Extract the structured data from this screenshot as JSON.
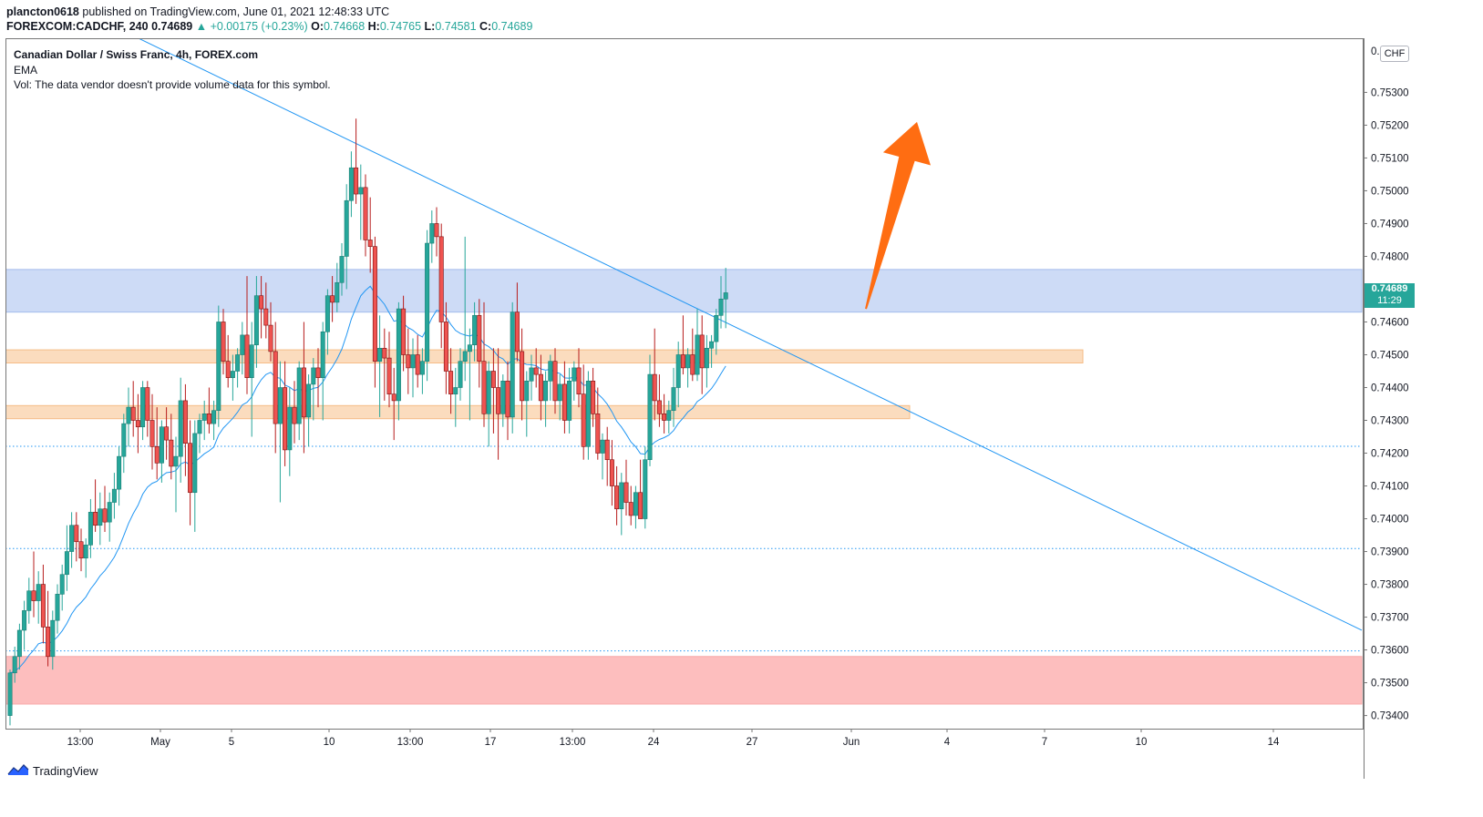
{
  "header": {
    "publisher": "plancton0618",
    "published_text": "published on TradingView.com, June 01, 2021 12:48:33 UTC",
    "symbol": "FOREXCOM:CADCHF, 240",
    "last": "0.74689",
    "change": "▲ +0.00175 (+0.23%)",
    "o_label": "O:",
    "o": "0.74668",
    "h_label": "H:",
    "h": "0.74765",
    "l_label": "L:",
    "l": "0.74581",
    "c_label": "C:",
    "c": "0.74689"
  },
  "legend": {
    "title": "Canadian Dollar / Swiss Franc, 4h, FOREX.com",
    "ema": "EMA",
    "vol": "Vol: The data vendor doesn't provide volume data for this symbol."
  },
  "currency_button": "CHF",
  "price_tag": {
    "price": "0.74689",
    "countdown": "11:29"
  },
  "brand": "TradingView",
  "colors": {
    "up": "#26a69a",
    "down": "#ef5350",
    "ema": "#2196f3",
    "trendline": "#2196f3",
    "blue_zone": "#c8d8f6",
    "orange_zone": "#fbd9b8",
    "red_zone": "#fdb8b8",
    "arrow": "#ff6d12"
  },
  "chart_data": {
    "type": "candlestick",
    "ylim": [
      0.7336,
      0.75465
    ],
    "y_ticks": [
      "0.73400",
      "0.73500",
      "0.73600",
      "0.73700",
      "0.73800",
      "0.73900",
      "0.74000",
      "0.74100",
      "0.74200",
      "0.74300",
      "0.74400",
      "0.74500",
      "0.74600",
      "0.74800",
      "0.74900",
      "0.75000",
      "0.75100",
      "0.75200",
      "0.75300"
    ],
    "x_ticks": [
      "13:00",
      "May",
      "5",
      "10",
      "13:00",
      "17",
      "13:00",
      "24",
      "27",
      "Jun",
      "4",
      "7",
      "10",
      "14"
    ],
    "zones": [
      {
        "kind": "resistance",
        "color": "blue",
        "low": 0.7463,
        "high": 0.7476
      },
      {
        "kind": "support",
        "color": "orange",
        "low": 0.74475,
        "high": 0.74515
      },
      {
        "kind": "support",
        "color": "orange",
        "low": 0.74305,
        "high": 0.74345
      },
      {
        "kind": "support",
        "color": "red",
        "low": 0.73435,
        "high": 0.7358
      }
    ],
    "horizontal_levels": [
      0.74221,
      0.73909,
      0.73597
    ],
    "trendline": [
      [
        0,
        0.7552
      ],
      [
        271,
        0.7366
      ]
    ],
    "arrow": {
      "from": [
        145,
        0.7464
      ],
      "to": [
        158,
        0.7521
      ]
    },
    "bars": [
      [
        0.734,
        0.7354,
        0.7337,
        0.7353
      ],
      [
        0.7353,
        0.7361,
        0.735,
        0.7358
      ],
      [
        0.7358,
        0.7368,
        0.7354,
        0.7366
      ],
      [
        0.7366,
        0.7375,
        0.736,
        0.7372
      ],
      [
        0.7372,
        0.7382,
        0.7368,
        0.7378
      ],
      [
        0.7378,
        0.739,
        0.737,
        0.7375
      ],
      [
        0.7375,
        0.7384,
        0.7368,
        0.738
      ],
      [
        0.738,
        0.7386,
        0.7362,
        0.7367
      ],
      [
        0.7367,
        0.7378,
        0.7355,
        0.7358
      ],
      [
        0.7358,
        0.7372,
        0.7354,
        0.7369
      ],
      [
        0.7369,
        0.738,
        0.7365,
        0.7377
      ],
      [
        0.7377,
        0.7386,
        0.7372,
        0.7383
      ],
      [
        0.7383,
        0.7398,
        0.7378,
        0.739
      ],
      [
        0.739,
        0.7402,
        0.7385,
        0.7398
      ],
      [
        0.7398,
        0.7402,
        0.7387,
        0.7393
      ],
      [
        0.7393,
        0.7397,
        0.7384,
        0.7388
      ],
      [
        0.7388,
        0.7394,
        0.7382,
        0.7392
      ],
      [
        0.7392,
        0.7406,
        0.7388,
        0.7402
      ],
      [
        0.7402,
        0.7412,
        0.7396,
        0.7398
      ],
      [
        0.7398,
        0.7408,
        0.7392,
        0.7403
      ],
      [
        0.7403,
        0.741,
        0.7396,
        0.7399
      ],
      [
        0.7399,
        0.7408,
        0.7393,
        0.7405
      ],
      [
        0.7405,
        0.7414,
        0.74,
        0.7409
      ],
      [
        0.7409,
        0.7422,
        0.7404,
        0.7419
      ],
      [
        0.7419,
        0.7432,
        0.7414,
        0.7429
      ],
      [
        0.7429,
        0.744,
        0.7422,
        0.7434
      ],
      [
        0.7434,
        0.7442,
        0.7425,
        0.743
      ],
      [
        0.743,
        0.7438,
        0.742,
        0.7428
      ],
      [
        0.7428,
        0.7442,
        0.7424,
        0.744
      ],
      [
        0.744,
        0.7442,
        0.7425,
        0.743
      ],
      [
        0.743,
        0.7438,
        0.7415,
        0.7422
      ],
      [
        0.7422,
        0.7434,
        0.7412,
        0.7417
      ],
      [
        0.7417,
        0.743,
        0.7411,
        0.7428
      ],
      [
        0.7428,
        0.7434,
        0.7418,
        0.7424
      ],
      [
        0.7424,
        0.7432,
        0.7412,
        0.7416
      ],
      [
        0.7416,
        0.7425,
        0.7402,
        0.7419
      ],
      [
        0.7419,
        0.7443,
        0.7411,
        0.7436
      ],
      [
        0.7436,
        0.7441,
        0.7413,
        0.7423
      ],
      [
        0.7423,
        0.743,
        0.7398,
        0.7408
      ],
      [
        0.7408,
        0.743,
        0.7396,
        0.7426
      ],
      [
        0.7426,
        0.7432,
        0.742,
        0.743
      ],
      [
        0.743,
        0.7436,
        0.7424,
        0.7432
      ],
      [
        0.7432,
        0.744,
        0.7426,
        0.7429
      ],
      [
        0.7429,
        0.7436,
        0.7424,
        0.7433
      ],
      [
        0.7433,
        0.7465,
        0.7428,
        0.746
      ],
      [
        0.746,
        0.7464,
        0.7444,
        0.7448
      ],
      [
        0.7448,
        0.7456,
        0.744,
        0.7443
      ],
      [
        0.7443,
        0.745,
        0.7436,
        0.7445
      ],
      [
        0.7445,
        0.7452,
        0.744,
        0.745
      ],
      [
        0.745,
        0.746,
        0.7444,
        0.7456
      ],
      [
        0.7456,
        0.7474,
        0.7438,
        0.7443
      ],
      [
        0.7443,
        0.746,
        0.7425,
        0.7453
      ],
      [
        0.7453,
        0.7474,
        0.7446,
        0.7468
      ],
      [
        0.7468,
        0.7474,
        0.7455,
        0.7464
      ],
      [
        0.7464,
        0.7472,
        0.7455,
        0.7459
      ],
      [
        0.7459,
        0.7466,
        0.7448,
        0.7451
      ],
      [
        0.7451,
        0.746,
        0.742,
        0.7429
      ],
      [
        0.7429,
        0.7448,
        0.7405,
        0.744
      ],
      [
        0.744,
        0.7448,
        0.7416,
        0.7421
      ],
      [
        0.7421,
        0.744,
        0.7413,
        0.7434
      ],
      [
        0.7434,
        0.7442,
        0.7423,
        0.7429
      ],
      [
        0.7429,
        0.7448,
        0.7424,
        0.7446
      ],
      [
        0.7446,
        0.746,
        0.742,
        0.7431
      ],
      [
        0.7431,
        0.7444,
        0.7422,
        0.7441
      ],
      [
        0.7441,
        0.7449,
        0.743,
        0.7446
      ],
      [
        0.7446,
        0.7452,
        0.7434,
        0.7443
      ],
      [
        0.7443,
        0.746,
        0.743,
        0.7457
      ],
      [
        0.7457,
        0.747,
        0.745,
        0.7468
      ],
      [
        0.7468,
        0.7474,
        0.746,
        0.7466
      ],
      [
        0.7466,
        0.7478,
        0.7463,
        0.7472
      ],
      [
        0.7472,
        0.7484,
        0.7468,
        0.748
      ],
      [
        0.748,
        0.7502,
        0.747,
        0.7497
      ],
      [
        0.7497,
        0.7512,
        0.7492,
        0.7507
      ],
      [
        0.7507,
        0.7522,
        0.7496,
        0.7499
      ],
      [
        0.7499,
        0.7508,
        0.7485,
        0.7501
      ],
      [
        0.7501,
        0.7505,
        0.748,
        0.7485
      ],
      [
        0.7485,
        0.7498,
        0.7475,
        0.7483
      ],
      [
        0.7483,
        0.7486,
        0.744,
        0.7448
      ],
      [
        0.7448,
        0.7462,
        0.7431,
        0.7452
      ],
      [
        0.7452,
        0.7458,
        0.7436,
        0.7449
      ],
      [
        0.7449,
        0.7457,
        0.7434,
        0.7438
      ],
      [
        0.7438,
        0.7446,
        0.7424,
        0.7436
      ],
      [
        0.7436,
        0.7466,
        0.743,
        0.7464
      ],
      [
        0.7464,
        0.7468,
        0.7445,
        0.745
      ],
      [
        0.745,
        0.7458,
        0.7438,
        0.7446
      ],
      [
        0.7446,
        0.7455,
        0.7437,
        0.745
      ],
      [
        0.745,
        0.7456,
        0.744,
        0.7444
      ],
      [
        0.7444,
        0.7452,
        0.7438,
        0.7448
      ],
      [
        0.7448,
        0.7488,
        0.7442,
        0.7484
      ],
      [
        0.7484,
        0.7494,
        0.7478,
        0.749
      ],
      [
        0.749,
        0.7495,
        0.748,
        0.7486
      ],
      [
        0.7486,
        0.749,
        0.7452,
        0.746
      ],
      [
        0.746,
        0.7466,
        0.7438,
        0.7445
      ],
      [
        0.7445,
        0.7452,
        0.7432,
        0.7438
      ],
      [
        0.7438,
        0.7446,
        0.7428,
        0.744
      ],
      [
        0.744,
        0.7452,
        0.7436,
        0.7448
      ],
      [
        0.7448,
        0.7486,
        0.7442,
        0.7451
      ],
      [
        0.7451,
        0.7458,
        0.743,
        0.7453
      ],
      [
        0.7453,
        0.7466,
        0.7448,
        0.7462
      ],
      [
        0.7462,
        0.7467,
        0.744,
        0.7448
      ],
      [
        0.7448,
        0.7466,
        0.7428,
        0.7432
      ],
      [
        0.7432,
        0.7448,
        0.7422,
        0.7445
      ],
      [
        0.7445,
        0.7452,
        0.7426,
        0.744
      ],
      [
        0.744,
        0.7452,
        0.7418,
        0.7432
      ],
      [
        0.7432,
        0.7444,
        0.7428,
        0.7442
      ],
      [
        0.7442,
        0.7448,
        0.7424,
        0.7431
      ],
      [
        0.7431,
        0.7466,
        0.7426,
        0.7463
      ],
      [
        0.7463,
        0.7472,
        0.7448,
        0.7451
      ],
      [
        0.7451,
        0.7458,
        0.743,
        0.7436
      ],
      [
        0.7436,
        0.7445,
        0.7425,
        0.7442
      ],
      [
        0.7442,
        0.745,
        0.7436,
        0.7446
      ],
      [
        0.7446,
        0.7452,
        0.744,
        0.7444
      ],
      [
        0.7444,
        0.745,
        0.743,
        0.7436
      ],
      [
        0.7436,
        0.7445,
        0.7428,
        0.7442
      ],
      [
        0.7442,
        0.745,
        0.7436,
        0.7448
      ],
      [
        0.7448,
        0.7452,
        0.7432,
        0.7436
      ],
      [
        0.7436,
        0.7444,
        0.743,
        0.7441
      ],
      [
        0.7441,
        0.7448,
        0.7426,
        0.743
      ],
      [
        0.743,
        0.7446,
        0.7426,
        0.7442
      ],
      [
        0.7442,
        0.7448,
        0.7436,
        0.7446
      ],
      [
        0.7446,
        0.7452,
        0.7434,
        0.7438
      ],
      [
        0.7438,
        0.7447,
        0.7418,
        0.7422
      ],
      [
        0.7422,
        0.7445,
        0.7418,
        0.7442
      ],
      [
        0.7442,
        0.7446,
        0.7428,
        0.7432
      ],
      [
        0.7432,
        0.744,
        0.7418,
        0.742
      ],
      [
        0.742,
        0.7426,
        0.7412,
        0.7424
      ],
      [
        0.7424,
        0.7428,
        0.741,
        0.7418
      ],
      [
        0.7418,
        0.7424,
        0.7404,
        0.741
      ],
      [
        0.741,
        0.7416,
        0.7398,
        0.7403
      ],
      [
        0.7403,
        0.7414,
        0.7395,
        0.7411
      ],
      [
        0.7411,
        0.7418,
        0.7401,
        0.7405
      ],
      [
        0.7405,
        0.741,
        0.7398,
        0.7401
      ],
      [
        0.7401,
        0.741,
        0.7397,
        0.7408
      ],
      [
        0.7408,
        0.7418,
        0.74,
        0.74
      ],
      [
        0.74,
        0.7422,
        0.7397,
        0.7418
      ],
      [
        0.7418,
        0.745,
        0.7416,
        0.7444
      ],
      [
        0.7444,
        0.7458,
        0.743,
        0.7436
      ],
      [
        0.7436,
        0.7444,
        0.7428,
        0.7432
      ],
      [
        0.7432,
        0.7438,
        0.7426,
        0.743
      ],
      [
        0.743,
        0.7436,
        0.7426,
        0.7433
      ],
      [
        0.7433,
        0.7446,
        0.7428,
        0.744
      ],
      [
        0.744,
        0.7454,
        0.7434,
        0.745
      ],
      [
        0.745,
        0.7462,
        0.7444,
        0.7446
      ],
      [
        0.7446,
        0.7452,
        0.744,
        0.745
      ],
      [
        0.745,
        0.7458,
        0.7442,
        0.7444
      ],
      [
        0.7444,
        0.7464,
        0.7442,
        0.7456
      ],
      [
        0.7456,
        0.7462,
        0.7438,
        0.7446
      ],
      [
        0.7446,
        0.7456,
        0.744,
        0.7452
      ],
      [
        0.7452,
        0.7456,
        0.7446,
        0.7454
      ],
      [
        0.7454,
        0.7464,
        0.745,
        0.7462
      ],
      [
        0.7462,
        0.7474,
        0.7458,
        0.7467
      ],
      [
        0.7467,
        0.74765,
        0.74581,
        0.74689
      ]
    ]
  }
}
